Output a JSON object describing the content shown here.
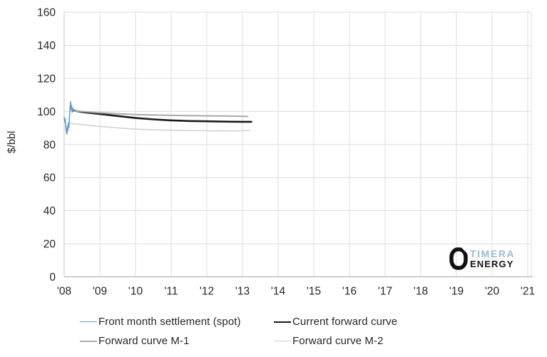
{
  "logo": {
    "top": "TIMERA",
    "bottom": "ENERGY"
  },
  "chart_data": {
    "type": "line",
    "title": "",
    "xlabel": "",
    "ylabel": "$/bbl",
    "xlim": [
      2008,
      2021.1
    ],
    "ylim": [
      0,
      160
    ],
    "grid": true,
    "legend_position": "bottom",
    "y_ticks": [
      0,
      20,
      40,
      60,
      80,
      100,
      120,
      140,
      160
    ],
    "x_ticks": [
      {
        "value": 2008,
        "label": "'08"
      },
      {
        "value": 2009,
        "label": "'09"
      },
      {
        "value": 2010,
        "label": "'10"
      },
      {
        "value": 2011,
        "label": "'11"
      },
      {
        "value": 2012,
        "label": "'12"
      },
      {
        "value": 2013,
        "label": "'13"
      },
      {
        "value": 2014,
        "label": "'14"
      },
      {
        "value": 2015,
        "label": "'15"
      },
      {
        "value": 2016,
        "label": "'16"
      },
      {
        "value": 2017,
        "label": "'17"
      },
      {
        "value": 2018,
        "label": "'18"
      },
      {
        "value": 2019,
        "label": "'19"
      },
      {
        "value": 2020,
        "label": "'20"
      },
      {
        "value": 2021,
        "label": "'21"
      }
    ],
    "series": [
      {
        "name": "Front month settlement (spot)",
        "color": "#6b9cc7",
        "width": 1.6,
        "points": [
          [
            2008.0,
            96.5
          ],
          [
            2008.015,
            93.5
          ],
          [
            2008.03,
            95.5
          ],
          [
            2008.045,
            90.5
          ],
          [
            2008.06,
            87.5
          ],
          [
            2008.075,
            86.3
          ],
          [
            2008.09,
            91.0
          ],
          [
            2008.105,
            88.5
          ],
          [
            2008.12,
            93.0
          ],
          [
            2008.135,
            90.5
          ],
          [
            2008.15,
            97.0
          ],
          [
            2008.165,
            102.0
          ],
          [
            2008.18,
            106.0
          ],
          [
            2008.195,
            101.0
          ],
          [
            2008.21,
            103.5
          ],
          [
            2008.225,
            99.5
          ],
          [
            2008.24,
            102.0
          ],
          [
            2008.255,
            100.0
          ],
          [
            2008.27,
            101.0
          ],
          [
            2008.285,
            100.3
          ]
        ]
      },
      {
        "name": "Current forward curve",
        "color": "#1a1a1a",
        "width": 2.6,
        "points": [
          [
            2008.28,
            100.4
          ],
          [
            2008.5,
            99.6
          ],
          [
            2009.0,
            98.4
          ],
          [
            2009.5,
            97.2
          ],
          [
            2010.0,
            96.0
          ],
          [
            2010.5,
            95.2
          ],
          [
            2011.0,
            94.6
          ],
          [
            2011.5,
            94.2
          ],
          [
            2012.0,
            94.0
          ],
          [
            2012.5,
            93.8
          ],
          [
            2013.0,
            93.7
          ],
          [
            2013.25,
            93.7
          ]
        ]
      },
      {
        "name": "Forward curve M-1",
        "color": "#a9a9a9",
        "width": 2.0,
        "points": [
          [
            2008.28,
            100.2
          ],
          [
            2008.5,
            99.9
          ],
          [
            2009.0,
            99.2
          ],
          [
            2009.5,
            98.6
          ],
          [
            2010.0,
            98.1
          ],
          [
            2010.5,
            97.8
          ],
          [
            2011.0,
            97.6
          ],
          [
            2011.5,
            97.4
          ],
          [
            2012.0,
            97.3
          ],
          [
            2012.5,
            97.2
          ],
          [
            2013.0,
            97.0
          ],
          [
            2013.15,
            96.9
          ]
        ]
      },
      {
        "name": "Forward curve M-2",
        "color": "#d2d2d2",
        "width": 1.6,
        "points": [
          [
            2008.18,
            92.8
          ],
          [
            2008.5,
            92.0
          ],
          [
            2009.0,
            90.9
          ],
          [
            2009.5,
            90.0
          ],
          [
            2010.0,
            89.3
          ],
          [
            2010.5,
            88.9
          ],
          [
            2011.0,
            88.6
          ],
          [
            2011.5,
            88.4
          ],
          [
            2012.0,
            88.3
          ],
          [
            2012.5,
            88.2
          ],
          [
            2013.0,
            88.3
          ],
          [
            2013.2,
            88.4
          ]
        ]
      }
    ]
  }
}
